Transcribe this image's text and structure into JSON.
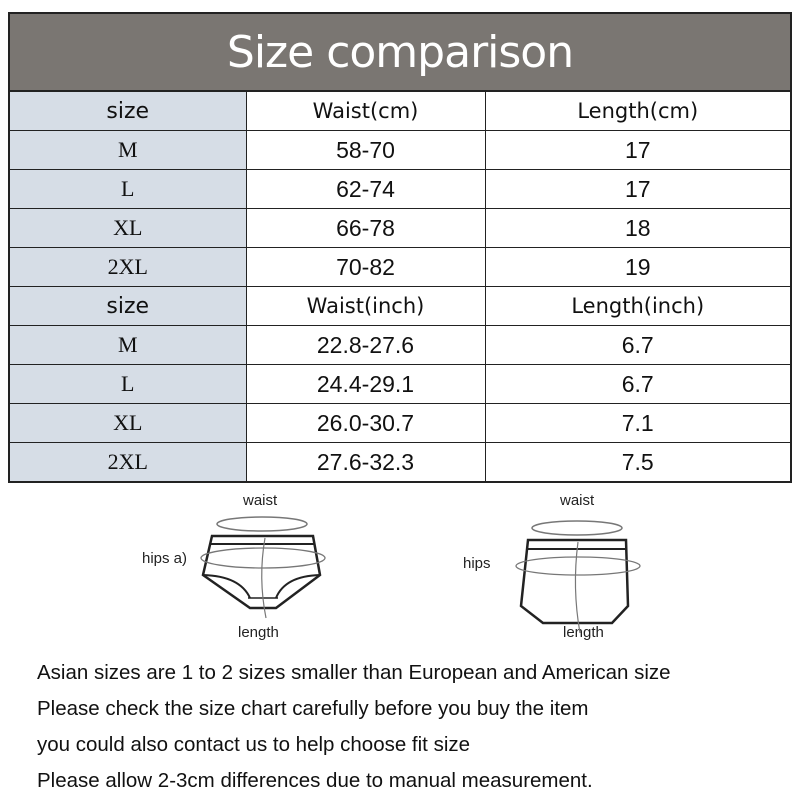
{
  "title": "Size comparison",
  "cm_table": {
    "headers": [
      "size",
      "Waist(cm)",
      "Length(cm)"
    ],
    "rows": [
      [
        "M",
        "58-70",
        "17"
      ],
      [
        "L",
        "62-74",
        "17"
      ],
      [
        "XL",
        "66-78",
        "18"
      ],
      [
        "2XL",
        "70-82",
        "19"
      ]
    ]
  },
  "inch_table": {
    "headers": [
      "size",
      "Waist(inch)",
      "Length(inch)"
    ],
    "rows": [
      [
        "M",
        "22.8-27.6",
        "6.7"
      ],
      [
        "L",
        "24.4-29.1",
        "6.7"
      ],
      [
        "XL",
        "26.0-30.7",
        "7.1"
      ],
      [
        "2XL",
        "27.6-32.3",
        "7.5"
      ]
    ]
  },
  "diagram_left": {
    "waist": "waist",
    "hips": "hips a)",
    "length": "length"
  },
  "diagram_right": {
    "waist": "waist",
    "hips": "hips",
    "length": "length"
  },
  "notes": [
    "Asian sizes are 1 to 2 sizes smaller than European and American size",
    "Please check the size chart carefully before you buy the item",
    "you could also contact us to help choose fit size",
    "Please allow 2-3cm differences due to manual measurement."
  ],
  "colors": {
    "title_bg": "#7a7672",
    "size_col_bg": "#d6dde6"
  }
}
